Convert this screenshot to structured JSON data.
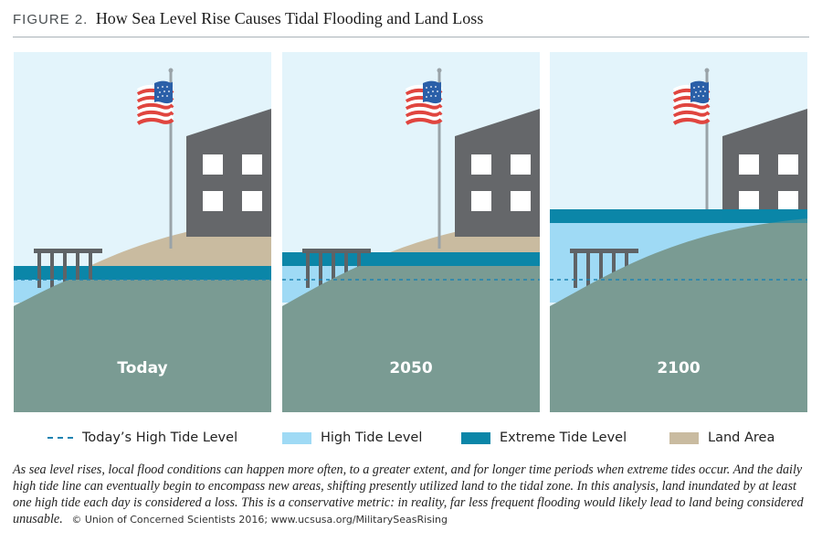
{
  "header": {
    "figure_label": "FIGURE 2.",
    "title": "How Sea Level Rise Causes Tidal Flooding and Land Loss"
  },
  "colors": {
    "sky": "#e3f4fb",
    "land": "#c9bba0",
    "inundated_land": "#7a9b93",
    "high_tide": "#9fdaf5",
    "extreme_tide": "#0b86a8",
    "building": "#65676a",
    "today_high_tide_line": "#1f83b1"
  },
  "panels": [
    {
      "label": "Today"
    },
    {
      "label": "2050"
    },
    {
      "label": "2100"
    }
  ],
  "legend": {
    "todays_high_tide": "Today’s High Tide Level",
    "high_tide": "High Tide Level",
    "extreme_tide": "Extreme Tide Level",
    "land_area": "Land Area"
  },
  "caption": {
    "text": "As sea level rises, local flood conditions can happen more often, to a greater extent, and for longer time periods when extreme tides occur. And the daily high tide line can eventually begin to encompass new areas, shifting presently utilized land to the tidal zone. In this analysis, land inundated by at least one high tide each day is considered a loss. This is a conservative metric: in reality, far less frequent flooding would likely lead to land being considered unusable.",
    "credit": "© Union of Concerned Scientists 2016; www.ucsusa.org/MilitarySeasRising"
  }
}
